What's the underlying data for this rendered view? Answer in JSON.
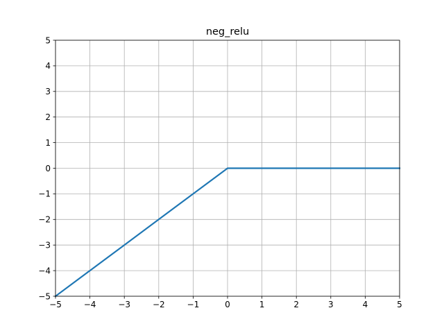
{
  "chart_data": {
    "type": "line",
    "title": "neg_relu",
    "xlabel": "",
    "ylabel": "",
    "xlim": [
      -5,
      5
    ],
    "ylim": [
      -5,
      5
    ],
    "xticks": [
      -5,
      -4,
      -3,
      -2,
      -1,
      0,
      1,
      2,
      3,
      4,
      5
    ],
    "yticks": [
      -5,
      -4,
      -3,
      -2,
      -1,
      0,
      1,
      2,
      3,
      4,
      5
    ],
    "xtick_labels": [
      "−5",
      "−4",
      "−3",
      "−2",
      "−1",
      "0",
      "1",
      "2",
      "3",
      "4",
      "5"
    ],
    "ytick_labels": [
      "−5",
      "−4",
      "−3",
      "−2",
      "−1",
      "0",
      "1",
      "2",
      "3",
      "4",
      "5"
    ],
    "grid": true,
    "series": [
      {
        "color": "#1f77b4",
        "x": [
          -5,
          -4,
          -3,
          -2,
          -1,
          0,
          1,
          2,
          3,
          4,
          5
        ],
        "y": [
          -5,
          -4,
          -3,
          -2,
          -1,
          0,
          0,
          0,
          0,
          0,
          0
        ]
      }
    ]
  }
}
